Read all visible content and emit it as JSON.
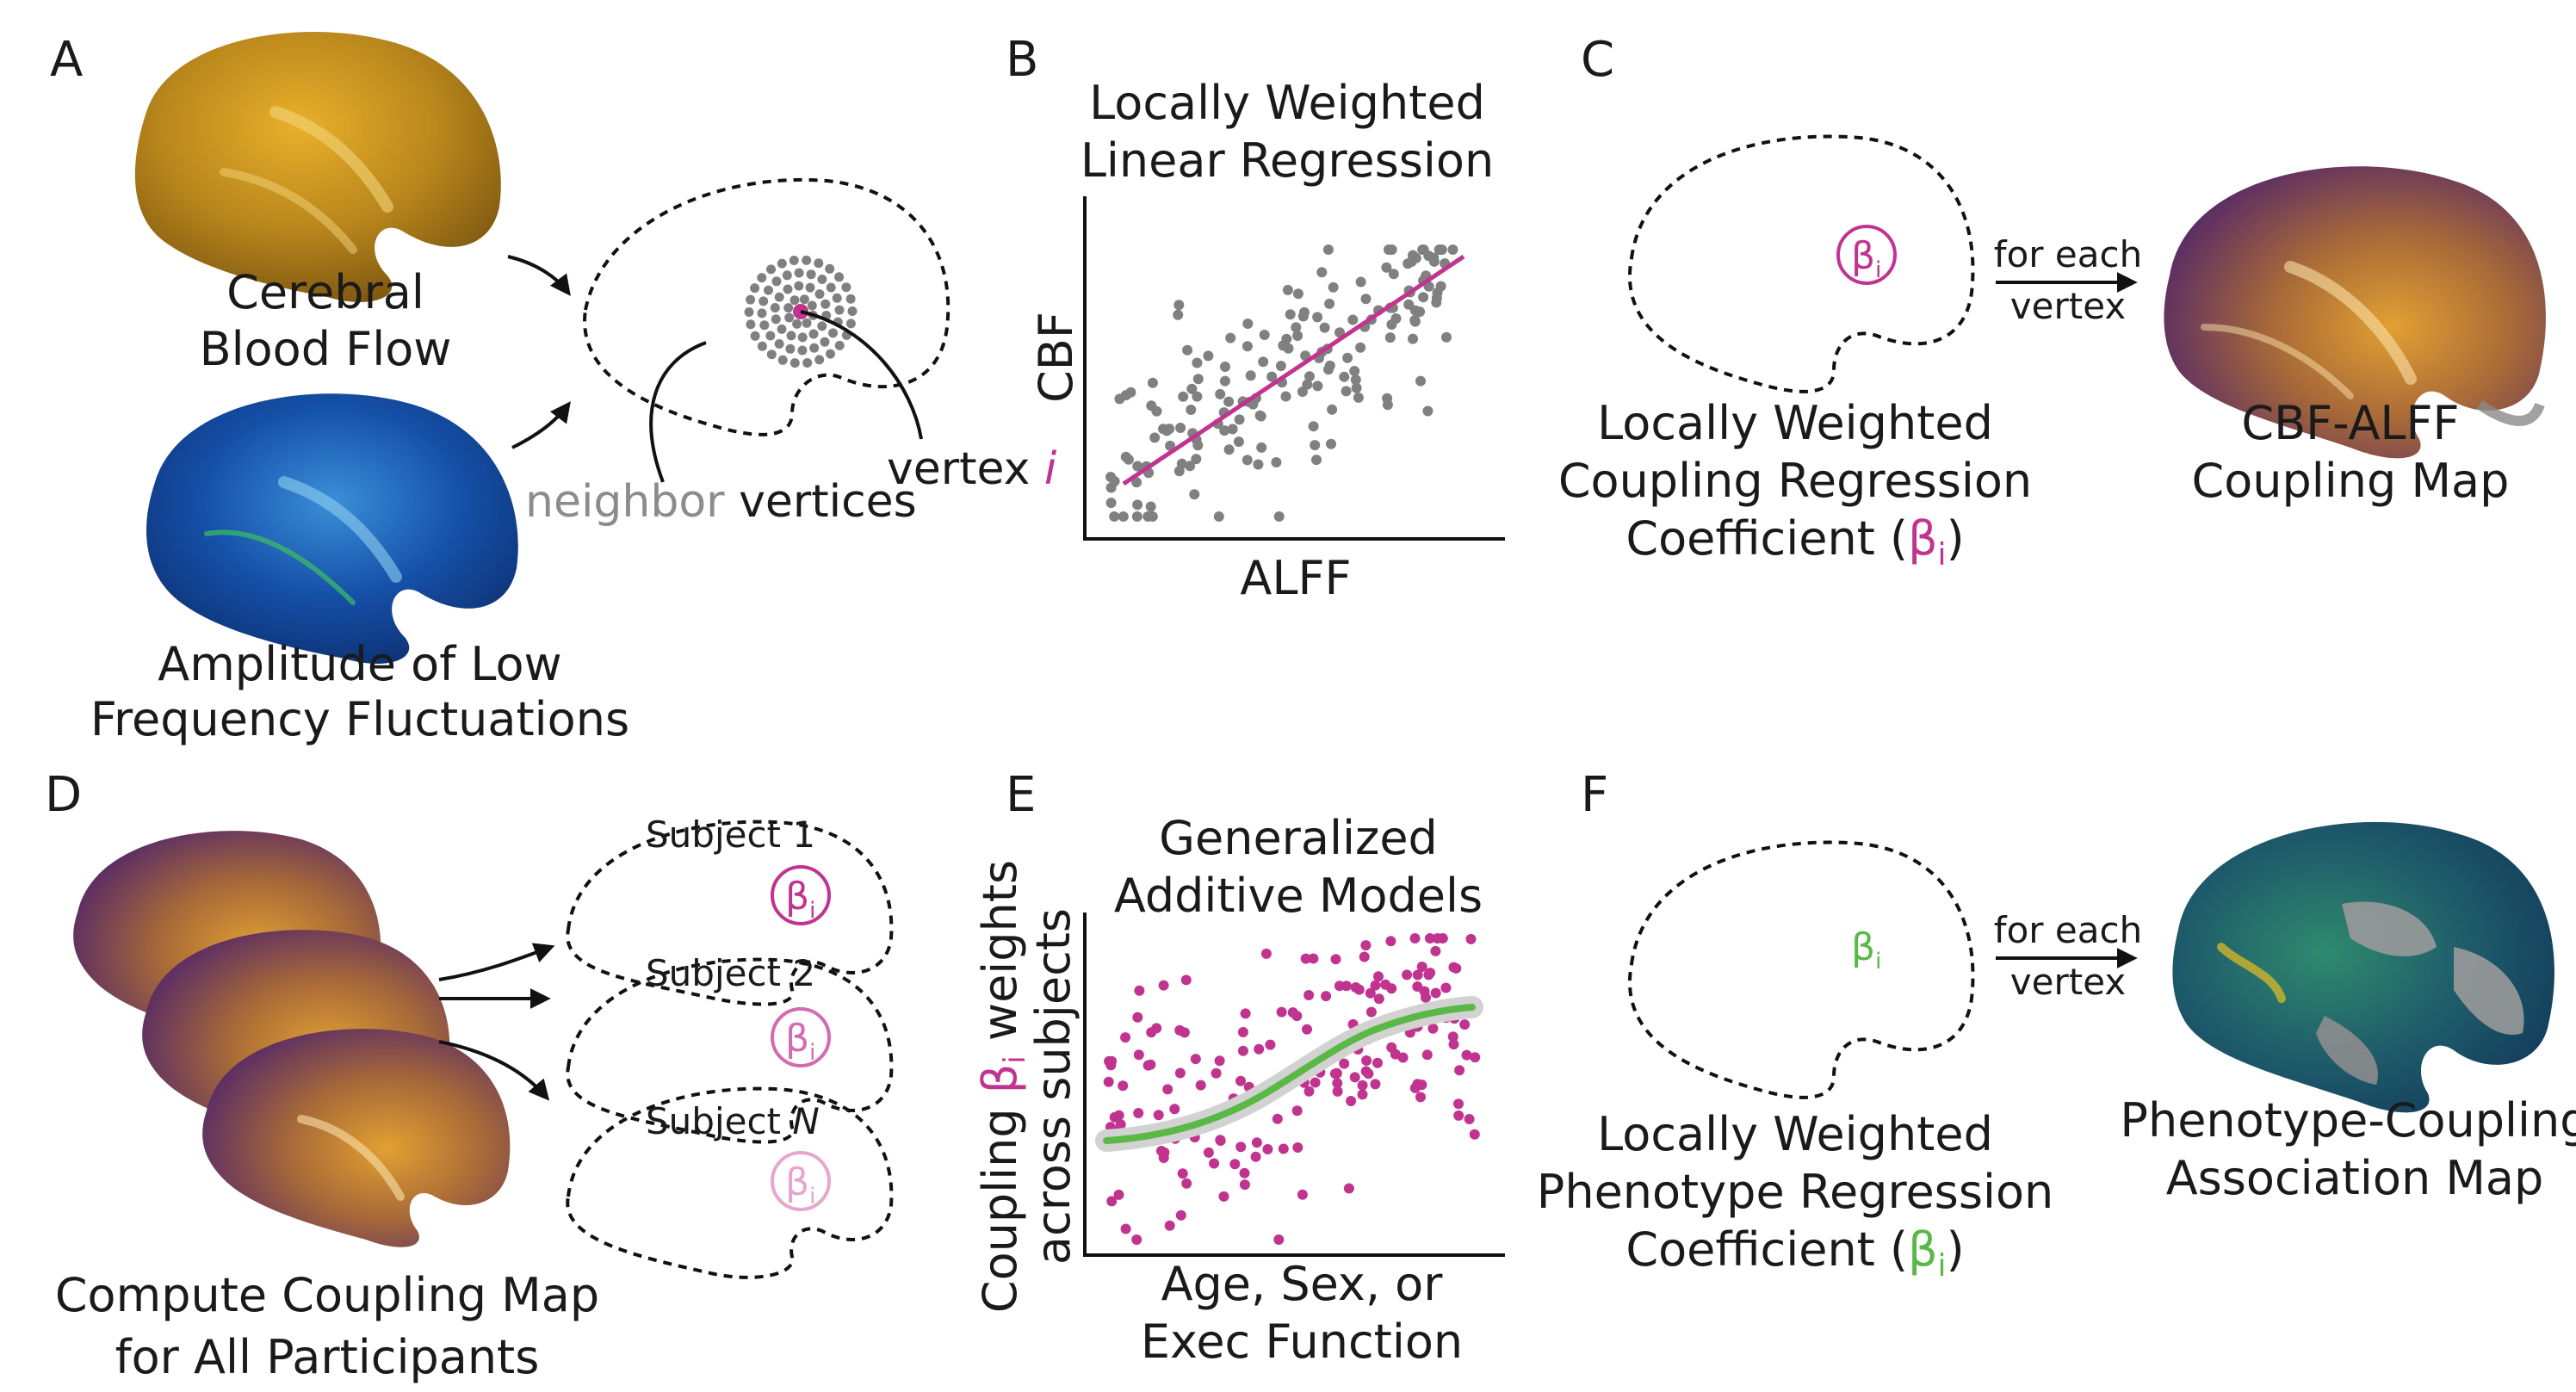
{
  "panels": {
    "a": {
      "letter": "A",
      "cbf_line1": "Cerebral",
      "cbf_line2": "Blood Flow",
      "alff_line1": "Amplitude of Low",
      "alff_line2": "Frequency Fluctuations",
      "neighbor_word": "neighbor",
      "vertices_word": " vertices",
      "vertex_word": "vertex ",
      "vertex_i": "i"
    },
    "b": {
      "letter": "B",
      "title_line1": "Locally Weighted",
      "title_line2": "Linear Regression",
      "ylabel": "CBF",
      "xlabel": "ALFF"
    },
    "c": {
      "letter": "C",
      "beta": "β",
      "beta_sub": "i",
      "arrow_line1": "for each",
      "arrow_line2": "vertex",
      "coef_line1": "Locally Weighted",
      "coef_line2": "Coupling Regression",
      "coef_line3_pre": "Coefficient (",
      "coef_beta": "β",
      "coef_sub": "i",
      "coef_close": ")",
      "map_line1": "CBF-ALFF",
      "map_line2": "Coupling Map"
    },
    "d": {
      "letter": "D",
      "subject1": "Subject 1",
      "subject2": "Subject 2",
      "subjectN_pre": "Subject ",
      "subjectN_var": "N",
      "beta": "β",
      "beta_sub": "i",
      "caption_line1": "Compute Coupling Map",
      "caption_line2": "for All Participants"
    },
    "e": {
      "letter": "E",
      "title_line1": "Generalized",
      "title_line2": "Additive Models",
      "ylabel_line1_pre": "Coupling ",
      "ylabel_beta": "β",
      "ylabel_sub": "i",
      "ylabel_line1_post": " weights",
      "ylabel_line2": "across subjects",
      "xlabel_line1": "Age, Sex, or",
      "xlabel_line2": "Exec Function"
    },
    "f": {
      "letter": "F",
      "beta": "β",
      "beta_sub": "i",
      "arrow_line1": "for each",
      "arrow_line2": "vertex",
      "coef_line1": "Locally Weighted",
      "coef_line2": "Phenotype Regression",
      "coef_line3_pre": "Coefficient (",
      "coef_beta": "β",
      "coef_sub": "i",
      "coef_close": ")",
      "map_line1": "Phenotype-Coupling",
      "map_line2": "Association Map"
    }
  },
  "colors": {
    "magenta": "#c0348f",
    "green": "#5ab946",
    "gray_points": "#808080",
    "neighbor_gray": "#8c8c8c"
  },
  "icons": {
    "cbf_brain": "brain-surface-gold",
    "alff_brain": "brain-surface-blue",
    "coupling_brain": "brain-surface-purple-gold",
    "association_brain": "brain-surface-teal-gray",
    "outline": "dashed-brain-outline"
  }
}
